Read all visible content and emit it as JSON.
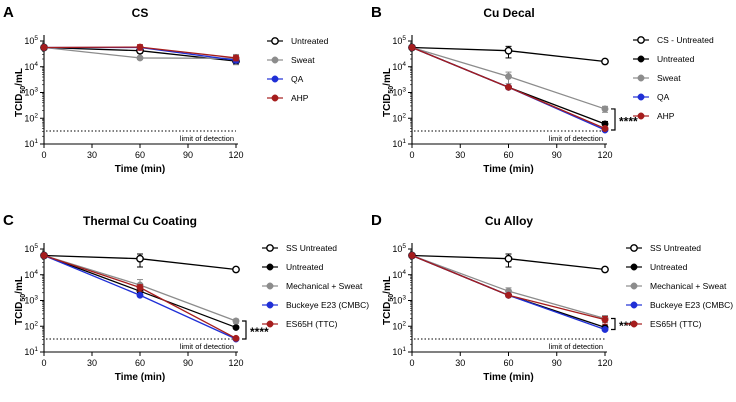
{
  "figure": {
    "y_axis_label": "TCID50/mL",
    "y_axis_main": "TCID",
    "y_axis_sub": "50",
    "y_axis_unit": "/mL",
    "x_axis_label": "Time (min)",
    "lod_label": "limit of detection",
    "significance": "****"
  },
  "chart_data": [
    {
      "letter": "A",
      "title": "CS",
      "type": "line",
      "x": [
        0,
        60,
        120
      ],
      "xticks": [
        0,
        30,
        60,
        90,
        120
      ],
      "yscale": "log",
      "ylim": [
        10,
        100000
      ],
      "yticks": [
        "10^1",
        "10^2",
        "10^3",
        "10^4",
        "10^5"
      ],
      "limit_of_detection": 32,
      "significance": "",
      "series": [
        {
          "name": "Untreated",
          "color": "#000000",
          "marker": "open",
          "values": [
            56000,
            42000,
            16500
          ],
          "err": [
            0,
            8000,
            4000
          ]
        },
        {
          "name": "Sweat",
          "color": "#8c8c8c",
          "marker": "filled",
          "values": [
            56000,
            22000,
            21000
          ],
          "err": [
            0,
            3000,
            9000
          ]
        },
        {
          "name": "QA",
          "color": "#1f2fd6",
          "marker": "filled",
          "values": [
            56000,
            56000,
            18000
          ],
          "err": [
            0,
            9000,
            4000
          ]
        },
        {
          "name": "AHP",
          "color": "#a51d1d",
          "marker": "filled",
          "values": [
            56000,
            58000,
            22000
          ],
          "err": [
            0,
            14000,
            5000
          ]
        }
      ]
    },
    {
      "letter": "B",
      "title": "Cu Decal",
      "type": "line",
      "x": [
        0,
        60,
        120
      ],
      "xticks": [
        0,
        30,
        60,
        90,
        120
      ],
      "yscale": "log",
      "ylim": [
        10,
        100000
      ],
      "yticks": [
        "10^1",
        "10^2",
        "10^3",
        "10^4",
        "10^5"
      ],
      "limit_of_detection": 32,
      "significance": "****",
      "series": [
        {
          "name": "CS - Untreated",
          "color": "#000000",
          "marker": "open",
          "values": [
            56000,
            42000,
            16000
          ],
          "err": [
            0,
            20000,
            2000
          ]
        },
        {
          "name": "Untreated",
          "color": "#000000",
          "marker": "filled",
          "values": [
            56000,
            1600,
            60
          ],
          "err": [
            0,
            200,
            15
          ]
        },
        {
          "name": "Sweat",
          "color": "#8c8c8c",
          "marker": "filled",
          "values": [
            56000,
            4200,
            230
          ],
          "err": [
            0,
            2000,
            60
          ]
        },
        {
          "name": "QA",
          "color": "#1f2fd6",
          "marker": "filled",
          "values": [
            56000,
            1600,
            35
          ],
          "err": [
            0,
            150,
            4
          ]
        },
        {
          "name": "AHP",
          "color": "#a51d1d",
          "marker": "filled",
          "values": [
            56000,
            1600,
            40
          ],
          "err": [
            0,
            150,
            5
          ]
        }
      ]
    },
    {
      "letter": "C",
      "title": "Thermal Cu Coating",
      "type": "line",
      "x": [
        0,
        60,
        120
      ],
      "xticks": [
        0,
        30,
        60,
        90,
        120
      ],
      "yscale": "log",
      "ylim": [
        10,
        100000
      ],
      "yticks": [
        "10^1",
        "10^2",
        "10^3",
        "10^4",
        "10^5"
      ],
      "limit_of_detection": 32,
      "significance": "****",
      "series": [
        {
          "name": "SS Untreated",
          "color": "#000000",
          "marker": "open",
          "values": [
            56000,
            42000,
            16000
          ],
          "err": [
            0,
            22000,
            2000
          ]
        },
        {
          "name": "Untreated",
          "color": "#000000",
          "marker": "filled",
          "values": [
            56000,
            2300,
            90
          ],
          "err": [
            0,
            700,
            10
          ]
        },
        {
          "name": "Mechanical + Sweat",
          "color": "#8c8c8c",
          "marker": "filled",
          "values": [
            56000,
            4000,
            160
          ],
          "err": [
            0,
            2500,
            30
          ]
        },
        {
          "name": "Buckeye E23 (CMBC)",
          "color": "#1f2fd6",
          "marker": "filled",
          "values": [
            56000,
            1600,
            32
          ],
          "err": [
            0,
            200,
            3
          ]
        },
        {
          "name": "ES65H (TTC)",
          "color": "#a51d1d",
          "marker": "filled",
          "values": [
            56000,
            3200,
            34
          ],
          "err": [
            0,
            900,
            4
          ]
        }
      ]
    },
    {
      "letter": "D",
      "title": "Cu Alloy",
      "type": "line",
      "x": [
        0,
        60,
        120
      ],
      "xticks": [
        0,
        30,
        60,
        90,
        120
      ],
      "yscale": "log",
      "ylim": [
        10,
        100000
      ],
      "yticks": [
        "10^1",
        "10^2",
        "10^3",
        "10^4",
        "10^5"
      ],
      "limit_of_detection": 32,
      "significance": "****",
      "series": [
        {
          "name": "SS Untreated",
          "color": "#000000",
          "marker": "open",
          "values": [
            56000,
            42000,
            16000
          ],
          "err": [
            0,
            22000,
            2000
          ]
        },
        {
          "name": "Untreated",
          "color": "#000000",
          "marker": "filled",
          "values": [
            56000,
            1600,
            90
          ],
          "err": [
            0,
            200,
            10
          ]
        },
        {
          "name": "Mechanical + Sweat",
          "color": "#8c8c8c",
          "marker": "filled",
          "values": [
            56000,
            2300,
            200
          ],
          "err": [
            0,
            800,
            60
          ]
        },
        {
          "name": "Buckeye E23 (CMBC)",
          "color": "#1f2fd6",
          "marker": "filled",
          "values": [
            56000,
            1600,
            75
          ],
          "err": [
            0,
            200,
            8
          ]
        },
        {
          "name": "ES65H (TTC)",
          "color": "#a51d1d",
          "marker": "filled",
          "values": [
            56000,
            1600,
            180
          ],
          "err": [
            0,
            200,
            60
          ]
        }
      ]
    }
  ]
}
